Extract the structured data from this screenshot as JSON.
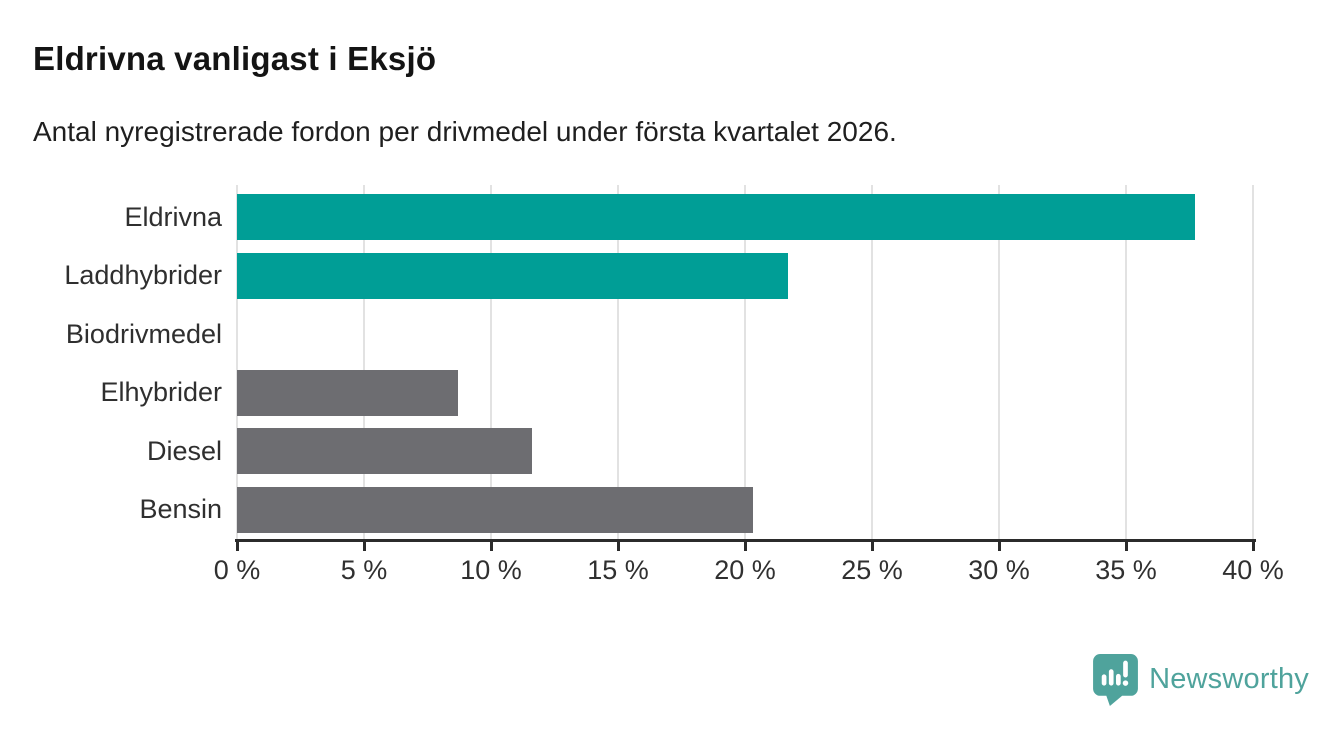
{
  "header": {
    "title": "Eldrivna vanligast i Eksjö",
    "subtitle": "Antal nyregistrerade fordon per drivmedel under första kvartalet 2026."
  },
  "chart_data": {
    "type": "bar",
    "orientation": "horizontal",
    "title": "Eldrivna vanligast i Eksjö",
    "subtitle": "Antal nyregistrerade fordon per drivmedel under första kvartalet 2026.",
    "categories": [
      "Eldrivna",
      "Laddhybrider",
      "Biodrivmedel",
      "Elhybrider",
      "Diesel",
      "Bensin"
    ],
    "values": [
      37.7,
      21.7,
      0,
      8.7,
      11.6,
      20.3
    ],
    "unit": "%",
    "xlabel": "",
    "ylabel": "",
    "xlim": [
      0,
      40
    ],
    "x_ticks": [
      0,
      5,
      10,
      15,
      20,
      25,
      30,
      35,
      40
    ],
    "x_tick_labels": [
      "0 %",
      "5 %",
      "10 %",
      "15 %",
      "20 %",
      "25 %",
      "30 %",
      "35 %",
      "40 %"
    ],
    "grid": true,
    "legend": false,
    "bar_colors": [
      "#009e96",
      "#009e96",
      "#6d6d71",
      "#6d6d71",
      "#6d6d71",
      "#6d6d71"
    ],
    "highlight_color": "#009e96",
    "default_color": "#6d6d71",
    "gridline_color": "#e2e2e2",
    "axis_color": "#2b2b2b"
  },
  "footer": {
    "brand": "Newsworthy",
    "brand_color": "#4fa39c",
    "logo_icon": "newsworthy-pin-barchart-icon"
  }
}
